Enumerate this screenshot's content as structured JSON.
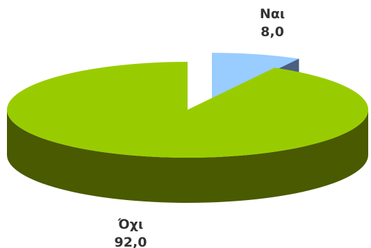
{
  "chart_data": {
    "type": "pie",
    "categories": [
      "Ναι",
      "Όχι"
    ],
    "values": [
      8.0,
      92.0
    ],
    "value_labels": [
      "8,0",
      "92,0"
    ],
    "colors": {
      "top": [
        "#99ccff",
        "#99cc00"
      ],
      "side": [
        "#4b5f7f",
        "#4a5a00"
      ]
    },
    "exploded_slice": "Ναι",
    "legend": "none",
    "style": "3d"
  }
}
